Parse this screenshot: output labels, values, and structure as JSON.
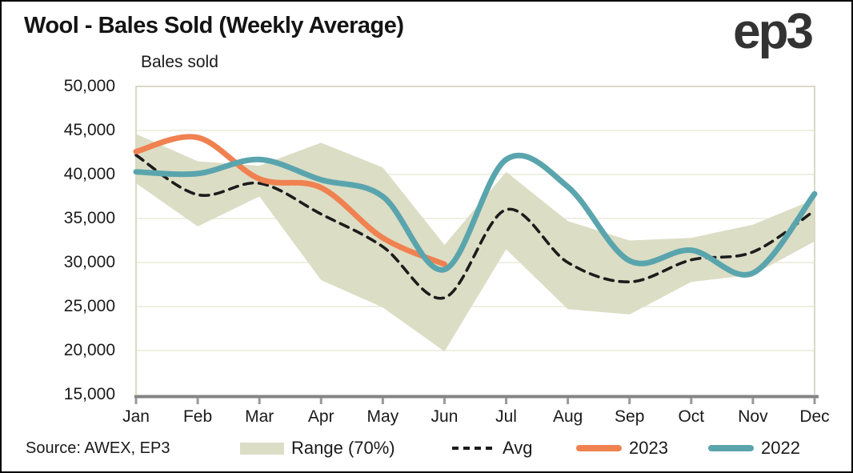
{
  "title": "Wool - Bales Sold (Weekly Average)",
  "logo_text": "ep3",
  "source_note": "Source: AWEX, EP3",
  "y_axis_title": "Bales sold",
  "colors": {
    "band": "#DCDDC5",
    "avg_line": "#1C1C1C",
    "line_2023": "#F08150",
    "line_2022": "#5AA5AD",
    "gridline": "#EFEFE3",
    "plot_border": "#D9D9C6",
    "axis_line": "#848484",
    "tick": "#999999",
    "text": "#1A1A1A"
  },
  "legend": [
    {
      "label": "Range (70%)",
      "swatch": "band"
    },
    {
      "label": "Avg",
      "swatch": "dashed"
    },
    {
      "label": "2023",
      "swatch": "line2023"
    },
    {
      "label": "2022",
      "swatch": "line2022"
    }
  ],
  "chart_data": {
    "type": "line",
    "title": "Wool - Bales Sold (Weekly Average)",
    "xlabel": "",
    "ylabel": "Bales sold",
    "ylim": [
      15000,
      50000
    ],
    "ytick_step": 5000,
    "ytick_labels": [
      "50,000",
      "45,000",
      "40,000",
      "35,000",
      "30,000",
      "25,000",
      "20,000",
      "15,000"
    ],
    "grid": "horizontal",
    "legend_position": "bottom",
    "categories": [
      "Jan",
      "Feb",
      "Mar",
      "Apr",
      "May",
      "Jun",
      "Jul",
      "Aug",
      "Sep",
      "Oct",
      "Nov",
      "Dec"
    ],
    "series": [
      {
        "name": "Range (70%)",
        "type": "band",
        "top": [
          44600,
          41500,
          41000,
          43600,
          40800,
          32000,
          40300,
          34700,
          32500,
          32800,
          34300,
          37200
        ],
        "bottom": [
          39000,
          34100,
          37500,
          28000,
          24900,
          19900,
          31500,
          24700,
          24100,
          27800,
          28600,
          32400
        ]
      },
      {
        "name": "Avg",
        "type": "line-dashed",
        "values": [
          42200,
          37700,
          39000,
          35500,
          31800,
          26000,
          36000,
          30000,
          27800,
          30300,
          31200,
          35900
        ]
      },
      {
        "name": "2023",
        "type": "line",
        "values": [
          42600,
          44200,
          39500,
          38500,
          32800,
          29800
        ]
      },
      {
        "name": "2022",
        "type": "line",
        "values": [
          40300,
          40100,
          41700,
          39400,
          37500,
          29200,
          41700,
          38600,
          30200,
          31400,
          28800,
          37800
        ]
      }
    ]
  }
}
